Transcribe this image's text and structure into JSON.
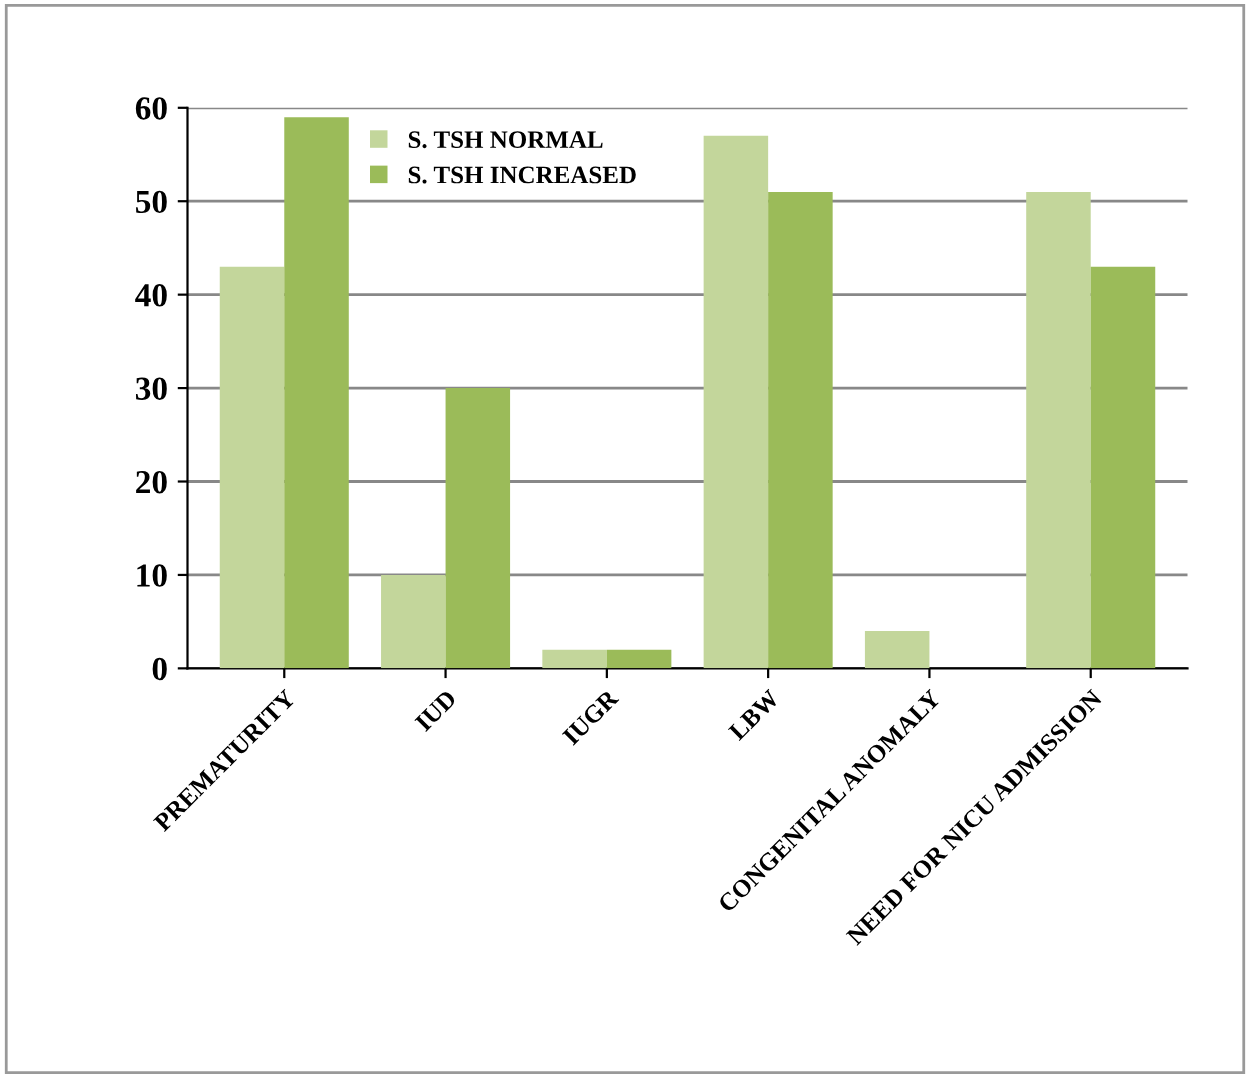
{
  "chart_data": {
    "type": "bar",
    "categories": [
      "PREMATURITY",
      "IUD",
      "IUGR",
      "LBW",
      "CONGENITAL ANOMALY",
      "NEED FOR NICU ADMISSION"
    ],
    "series": [
      {
        "name": "S. TSH NORMAL",
        "color": "#c3d69b",
        "values": [
          43,
          10,
          2,
          57,
          4,
          51
        ]
      },
      {
        "name": "S. TSH INCREASED",
        "color": "#9bbb59",
        "values": [
          59,
          30,
          2,
          51,
          0,
          43
        ]
      }
    ],
    "ylim": [
      0,
      60
    ],
    "yticks": [
      0,
      10,
      20,
      30,
      40,
      50,
      60
    ],
    "grid": "y",
    "legend": "top left"
  }
}
